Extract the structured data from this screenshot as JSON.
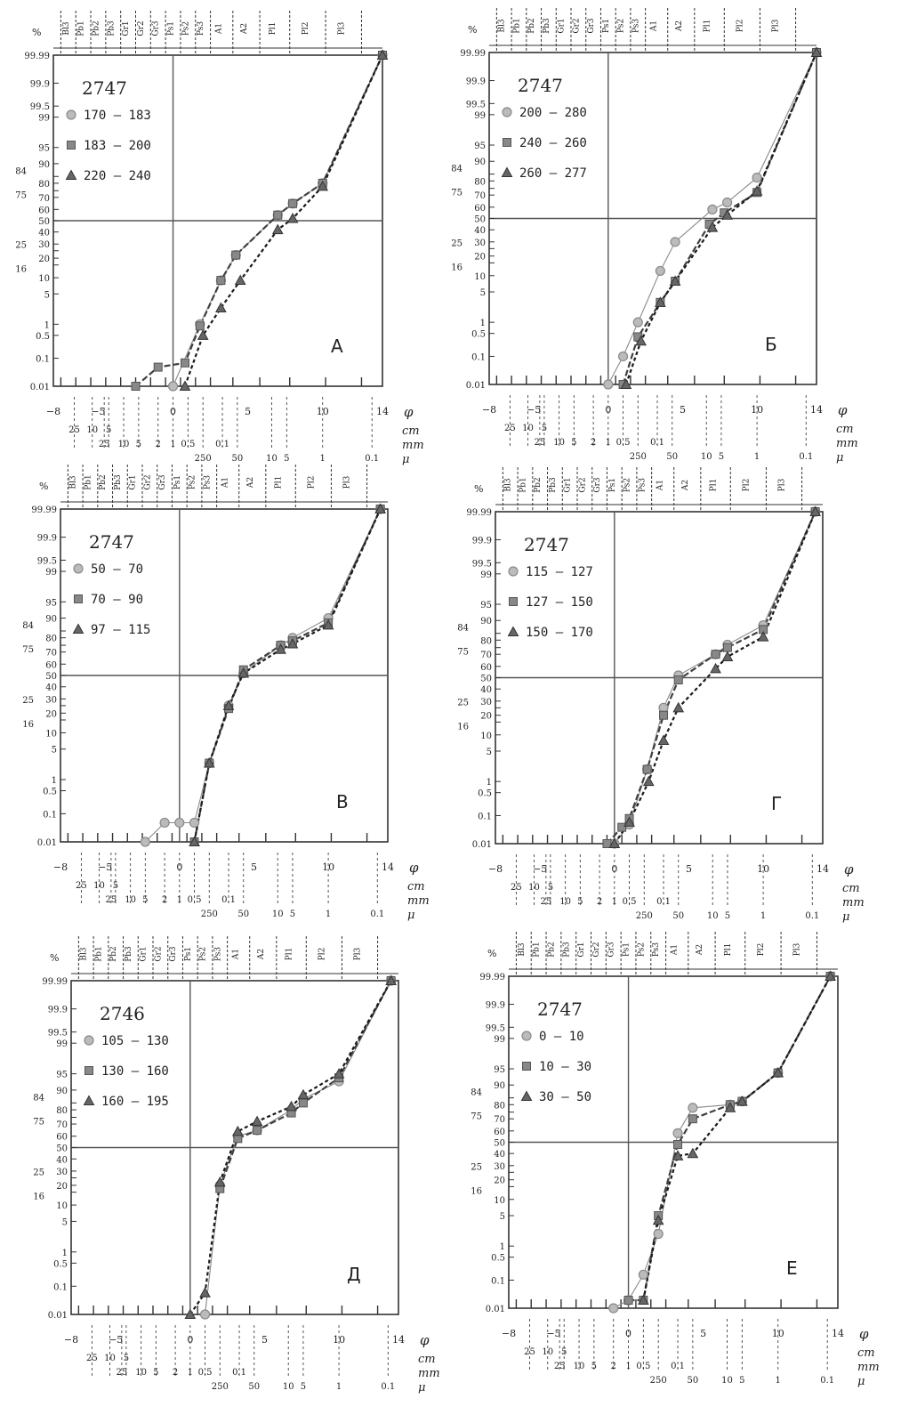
{
  "figure": {
    "percent_symbol": "%",
    "grain_classes": [
      "Bl3",
      "Pb1",
      "Pb2",
      "Pb3",
      "Gr1",
      "Gr2",
      "Gr3",
      "Ps1",
      "Ps2",
      "Ps3",
      "A1",
      "A2",
      "Pl1",
      "Pl2",
      "Pl3"
    ],
    "y_tick_labels": [
      "99.99",
      "99.9",
      "99.5",
      "99",
      "95",
      "90",
      "84",
      "80",
      "75",
      "70",
      "60",
      "50",
      "40",
      "30",
      "25",
      "20",
      "16",
      "10",
      "5",
      "1",
      "0.5",
      "0.1",
      "0.01"
    ],
    "phi_axis": {
      "symbol": "φ",
      "ticks": [
        -8,
        -5,
        0,
        5,
        10,
        14
      ],
      "labels": [
        "−8",
        "−5",
        "0",
        "5",
        "10",
        "14"
      ]
    },
    "cm_labels": [
      "25",
      "10",
      "5"
    ],
    "mm_labels": [
      "25",
      "10",
      "5",
      "2",
      "1",
      "0.5",
      "0.1"
    ],
    "mu_labels": [
      "250",
      "50",
      "10",
      "5",
      "1",
      "0.1"
    ],
    "unit_labels": [
      "cm",
      "mm",
      "μ"
    ],
    "colors": {
      "series_1": "#8a8a8a",
      "series_2": "#404040",
      "series_3": "#1a1a1a",
      "axis": "#333333"
    }
  },
  "chart_data": [
    {
      "type": "line",
      "panel": "А",
      "well": "2747",
      "y_scale": "probability",
      "xlim": [
        -8,
        14
      ],
      "ylim": [
        0.01,
        99.99
      ],
      "series": [
        {
          "name": "170 – 183",
          "marker": "circle",
          "x": [
            0,
            1.8,
            3.2,
            4.2,
            7,
            8,
            10,
            14
          ],
          "y": [
            0.01,
            1,
            9,
            22,
            55,
            65,
            80,
            99.99
          ]
        },
        {
          "name": "183 – 200",
          "marker": "square",
          "x": [
            -2.5,
            -1,
            0.8,
            1.8,
            3.2,
            4.2,
            7,
            8,
            10,
            14
          ],
          "y": [
            0.01,
            0.05,
            0.07,
            0.9,
            9,
            22,
            55,
            65,
            80,
            99.99
          ]
        },
        {
          "name": "220 – 240",
          "marker": "triangle",
          "x": [
            0.8,
            2,
            3.2,
            4.5,
            7,
            8,
            10,
            14
          ],
          "y": [
            0.01,
            0.5,
            2.5,
            9,
            42,
            52,
            78,
            99.99
          ]
        }
      ]
    },
    {
      "type": "line",
      "panel": "Б",
      "well": "2747",
      "y_scale": "probability",
      "xlim": [
        -8,
        14
      ],
      "ylim": [
        0.01,
        99.99
      ],
      "series": [
        {
          "name": "200 – 280",
          "marker": "circle",
          "x": [
            0,
            1,
            2,
            3.5,
            4.5,
            7,
            8,
            10,
            14
          ],
          "y": [
            0.01,
            0.1,
            1,
            12,
            30,
            58,
            64,
            82,
            99.99
          ]
        },
        {
          "name": "240 – 260",
          "marker": "square",
          "x": [
            1,
            2,
            3.5,
            4.5,
            6.8,
            7.8,
            10,
            14
          ],
          "y": [
            0.01,
            0.4,
            3,
            8,
            45,
            55,
            72,
            99.99
          ]
        },
        {
          "name": "260 – 277",
          "marker": "triangle",
          "x": [
            1.2,
            2.2,
            3.5,
            4.5,
            7,
            8,
            10,
            14
          ],
          "y": [
            0.01,
            0.3,
            3,
            8,
            42,
            53,
            73,
            99.99
          ]
        }
      ]
    },
    {
      "type": "line",
      "panel": "В",
      "well": "2747",
      "y_scale": "probability",
      "xlim": [
        -8,
        14
      ],
      "ylim": [
        0.01,
        99.99
      ],
      "series": [
        {
          "name": "50 – 70",
          "marker": "circle",
          "x": [
            -2.3,
            -1,
            0,
            1,
            2,
            3.3,
            4.3,
            6.8,
            7.6,
            10,
            13.5
          ],
          "y": [
            0.01,
            0.05,
            0.05,
            0.05,
            2.5,
            25,
            52,
            75,
            80,
            90,
            99.99
          ]
        },
        {
          "name": "70 – 90",
          "marker": "square",
          "x": [
            1,
            2,
            3.3,
            4.3,
            6.8,
            7.6,
            10,
            13.5
          ],
          "y": [
            0.01,
            2.5,
            23,
            55,
            75,
            78,
            88,
            99.99
          ]
        },
        {
          "name": "97 – 115",
          "marker": "triangle",
          "x": [
            1,
            2,
            3.3,
            4.3,
            6.8,
            7.6,
            10,
            13.5
          ],
          "y": [
            0.01,
            2.5,
            25,
            52,
            72,
            76,
            87,
            99.99
          ]
        }
      ]
    },
    {
      "type": "line",
      "panel": "Г",
      "well": "2747",
      "y_scale": "probability",
      "xlim": [
        -8,
        14
      ],
      "ylim": [
        0.01,
        99.99
      ],
      "series": [
        {
          "name": "115 – 127",
          "marker": "circle",
          "x": [
            0,
            1,
            2.2,
            3.3,
            4.3,
            6.8,
            7.6,
            10,
            13.5
          ],
          "y": [
            0.01,
            0.05,
            2,
            25,
            52,
            70,
            77,
            88,
            99.99
          ]
        },
        {
          "name": "127 – 150",
          "marker": "square",
          "x": [
            -0.5,
            0.5,
            1,
            2.2,
            3.3,
            4.3,
            6.8,
            7.6,
            10,
            13.5
          ],
          "y": [
            0.01,
            0.04,
            0.08,
            2,
            20,
            48,
            70,
            75,
            86,
            99.99
          ]
        },
        {
          "name": "150 – 170",
          "marker": "triangle",
          "x": [
            0,
            1,
            2.3,
            3.3,
            4.3,
            6.8,
            7.6,
            10,
            13.5
          ],
          "y": [
            0.01,
            0.06,
            1,
            8,
            25,
            58,
            68,
            82,
            99.99
          ]
        }
      ]
    },
    {
      "type": "line",
      "panel": "Д",
      "well": "2746",
      "y_scale": "probability",
      "xlim": [
        -8,
        14
      ],
      "ylim": [
        0.01,
        99.99
      ],
      "series": [
        {
          "name": "105 – 130",
          "marker": "circle",
          "x": [
            1,
            2,
            3.2,
            4.5,
            6.8,
            7.6,
            10,
            13.5
          ],
          "y": [
            0.01,
            20,
            60,
            65,
            80,
            86,
            93,
            99.99
          ]
        },
        {
          "name": "130 – 160",
          "marker": "square",
          "x": [
            2,
            3.2,
            4.5,
            6.8,
            7.6,
            10,
            13.5
          ],
          "y": [
            18,
            58,
            65,
            78,
            84,
            94,
            99.99
          ]
        },
        {
          "name": "160 – 195",
          "marker": "triangle",
          "x": [
            0,
            1,
            2,
            3.2,
            4.5,
            6.8,
            7.6,
            10,
            13.5
          ],
          "y": [
            0.01,
            0.06,
            22,
            64,
            72,
            82,
            88,
            95,
            99.99
          ]
        }
      ]
    },
    {
      "type": "line",
      "panel": "Е",
      "well": "2747",
      "y_scale": "probability",
      "xlim": [
        -8,
        14
      ],
      "ylim": [
        0.01,
        99.99
      ],
      "series": [
        {
          "name": "0 – 10",
          "marker": "circle",
          "x": [
            -1,
            0,
            1,
            2,
            3.3,
            4.3,
            6.8,
            7.6,
            10,
            13.5
          ],
          "y": [
            0.01,
            0.02,
            0.15,
            2,
            58,
            78,
            80,
            82,
            94,
            99.99
          ]
        },
        {
          "name": "10 – 30",
          "marker": "square",
          "x": [
            0,
            1,
            2,
            3.3,
            4.3,
            6.8,
            7.6,
            10,
            13.5
          ],
          "y": [
            0.02,
            0.02,
            5,
            48,
            70,
            80,
            82,
            94,
            99.99
          ]
        },
        {
          "name": "30 – 50",
          "marker": "triangle",
          "x": [
            1,
            2,
            3.3,
            4.3,
            6.8,
            7.6,
            10,
            13.5
          ],
          "y": [
            0.02,
            4,
            38,
            40,
            78,
            82,
            94,
            99.99
          ]
        }
      ]
    }
  ]
}
